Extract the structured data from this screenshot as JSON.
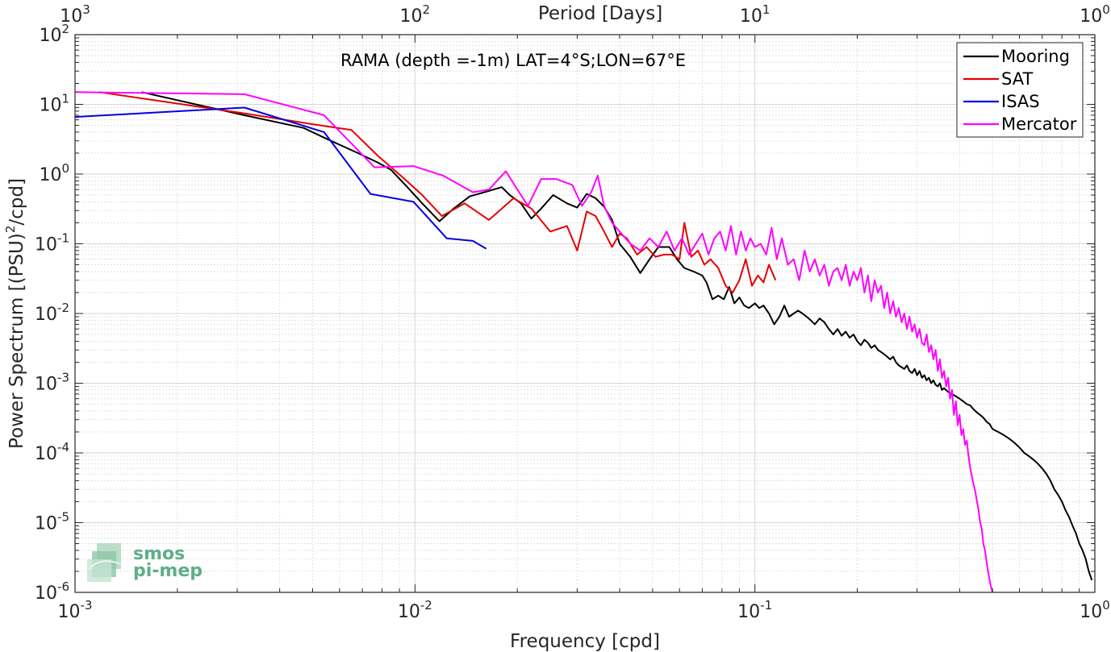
{
  "chart_data": {
    "type": "line",
    "title": "RAMA (depth =-1m) LAT=4°S;LON=67°E",
    "xlabel": "Frequency [cpd]",
    "ylabel": "Power Spectrum [(PSU)",
    "ylabel_sup": "2",
    "ylabel_tail": "/cpd]",
    "top_xlabel": "Period [Days]",
    "x_scale": "log",
    "y_scale": "log",
    "xlim": [
      0.001,
      1
    ],
    "ylim": [
      1e-06,
      100
    ],
    "grid": true,
    "minor_grid": true,
    "legend_position": "top-right",
    "x_ticks": [
      {
        "base": "10",
        "exp": "-3",
        "value": 0.001
      },
      {
        "base": "10",
        "exp": "-2",
        "value": 0.01
      },
      {
        "base": "10",
        "exp": "-1",
        "value": 0.1
      },
      {
        "base": "10",
        "exp": "0",
        "value": 1
      }
    ],
    "top_ticks": [
      {
        "base": "10",
        "exp": "3",
        "value": 0.001
      },
      {
        "base": "10",
        "exp": "2",
        "value": 0.01
      },
      {
        "base": "10",
        "exp": "1",
        "value": 0.1
      },
      {
        "base": "10",
        "exp": "0",
        "value": 1
      }
    ],
    "y_ticks": [
      {
        "base": "10",
        "exp": "2",
        "value": 100
      },
      {
        "base": "10",
        "exp": "1",
        "value": 10
      },
      {
        "base": "10",
        "exp": "0",
        "value": 1
      },
      {
        "base": "10",
        "exp": "-1",
        "value": 0.1
      },
      {
        "base": "10",
        "exp": "-2",
        "value": 0.01
      },
      {
        "base": "10",
        "exp": "-3",
        "value": 0.001
      },
      {
        "base": "10",
        "exp": "-4",
        "value": 0.0001
      },
      {
        "base": "10",
        "exp": "-5",
        "value": 1e-05
      },
      {
        "base": "10",
        "exp": "-6",
        "value": 1e-06
      }
    ],
    "series": [
      {
        "name": "Mooring",
        "color": "#000000",
        "x": [
          0.00157,
          0.00314,
          0.0047,
          0.0055,
          0.0068,
          0.0078,
          0.0085,
          0.0095,
          0.0105,
          0.0118,
          0.013,
          0.0145,
          0.016,
          0.018,
          0.019,
          0.0205,
          0.022,
          0.0235,
          0.0255,
          0.028,
          0.03,
          0.032,
          0.034,
          0.036,
          0.038,
          0.04,
          0.043,
          0.046,
          0.049,
          0.052,
          0.056,
          0.059,
          0.062,
          0.066,
          0.07,
          0.072,
          0.075,
          0.078,
          0.081,
          0.084,
          0.087,
          0.09,
          0.093,
          0.096,
          0.1,
          0.103,
          0.106,
          0.11,
          0.114,
          0.118,
          0.122,
          0.126,
          0.13,
          0.134,
          0.138,
          0.142,
          0.146,
          0.15,
          0.155,
          0.16,
          0.165,
          0.17,
          0.175,
          0.18,
          0.185,
          0.19,
          0.195,
          0.2,
          0.205,
          0.21,
          0.215,
          0.22,
          0.225,
          0.23,
          0.235,
          0.24,
          0.245,
          0.25,
          0.255,
          0.26,
          0.265,
          0.27,
          0.275,
          0.28,
          0.285,
          0.29,
          0.295,
          0.3,
          0.305,
          0.31,
          0.315,
          0.32,
          0.325,
          0.33,
          0.335,
          0.34,
          0.345,
          0.35,
          0.355,
          0.36,
          0.37,
          0.38,
          0.39,
          0.4,
          0.41,
          0.42,
          0.43,
          0.44,
          0.45,
          0.46,
          0.47,
          0.48,
          0.49,
          0.5,
          0.52,
          0.54,
          0.56,
          0.58,
          0.6,
          0.62,
          0.64,
          0.66,
          0.68,
          0.7,
          0.72,
          0.74,
          0.76,
          0.78,
          0.8,
          0.82,
          0.84,
          0.86,
          0.88,
          0.9,
          0.92,
          0.94,
          0.96,
          0.98
        ],
        "y": [
          15,
          7,
          4.6,
          3.2,
          2.0,
          1.45,
          1.15,
          0.65,
          0.38,
          0.21,
          0.32,
          0.48,
          0.55,
          0.65,
          0.5,
          0.38,
          0.23,
          0.32,
          0.5,
          0.38,
          0.33,
          0.52,
          0.45,
          0.34,
          0.22,
          0.1,
          0.065,
          0.038,
          0.06,
          0.09,
          0.09,
          0.06,
          0.045,
          0.04,
          0.035,
          0.028,
          0.016,
          0.018,
          0.016,
          0.024,
          0.014,
          0.017,
          0.013,
          0.012,
          0.014,
          0.012,
          0.013,
          0.01,
          0.007,
          0.009,
          0.013,
          0.009,
          0.01,
          0.011,
          0.01,
          0.009,
          0.008,
          0.007,
          0.0085,
          0.0075,
          0.006,
          0.005,
          0.006,
          0.0048,
          0.0055,
          0.0045,
          0.005,
          0.004,
          0.0035,
          0.0042,
          0.0038,
          0.0032,
          0.0035,
          0.003,
          0.0028,
          0.0026,
          0.0024,
          0.0022,
          0.0024,
          0.002,
          0.0018,
          0.0017,
          0.0016,
          0.0018,
          0.0015,
          0.0014,
          0.0016,
          0.0013,
          0.0015,
          0.0012,
          0.0013,
          0.0011,
          0.0012,
          0.001,
          0.0011,
          0.00095,
          0.0009,
          0.001,
          0.0008,
          0.00085,
          0.00075,
          0.0007,
          0.00065,
          0.0006,
          0.00055,
          0.0005,
          0.00048,
          0.00042,
          0.00038,
          0.00035,
          0.00032,
          0.00028,
          0.00026,
          0.00022,
          0.0002,
          0.00018,
          0.00016,
          0.00014,
          0.00012,
          0.0001,
          9e-05,
          8e-05,
          7e-05,
          6e-05,
          5e-05,
          4e-05,
          3e-05,
          2.5e-05,
          2e-05,
          1.5e-05,
          1.2e-05,
          9e-06,
          7e-06,
          5e-06,
          4e-06,
          3e-06,
          2e-06,
          1.5e-06
        ]
      },
      {
        "name": "SAT",
        "color": "#e50000",
        "x": [
          0.00118,
          0.0031,
          0.005,
          0.0065,
          0.0078,
          0.0092,
          0.0105,
          0.012,
          0.014,
          0.0165,
          0.0195,
          0.022,
          0.025,
          0.028,
          0.03,
          0.032,
          0.034,
          0.036,
          0.038,
          0.04,
          0.042,
          0.045,
          0.048,
          0.051,
          0.054,
          0.057,
          0.06,
          0.062,
          0.065,
          0.068,
          0.071,
          0.074,
          0.078,
          0.082,
          0.086,
          0.09,
          0.094,
          0.098,
          0.102,
          0.106,
          0.11,
          0.115
        ],
        "y": [
          15,
          7.5,
          5.2,
          4.3,
          1.8,
          0.9,
          0.5,
          0.25,
          0.38,
          0.22,
          0.45,
          0.32,
          0.15,
          0.18,
          0.08,
          0.29,
          0.25,
          0.15,
          0.09,
          0.14,
          0.12,
          0.07,
          0.09,
          0.065,
          0.07,
          0.07,
          0.06,
          0.2,
          0.065,
          0.08,
          0.05,
          0.06,
          0.045,
          0.025,
          0.02,
          0.03,
          0.06,
          0.025,
          0.035,
          0.028,
          0.05,
          0.03
        ]
      },
      {
        "name": "ISAS",
        "color": "#0000e5",
        "x": [
          0.001,
          0.00315,
          0.0054,
          0.0074,
          0.0099,
          0.0124,
          0.0148,
          0.0162
        ],
        "y": [
          6.6,
          9,
          4,
          0.52,
          0.4,
          0.12,
          0.11,
          0.085
        ]
      },
      {
        "name": "Mercator",
        "color": "#ff00ff",
        "x": [
          0.001,
          0.00315,
          0.0054,
          0.0076,
          0.0099,
          0.0121,
          0.0148,
          0.0165,
          0.0185,
          0.02,
          0.0215,
          0.0235,
          0.026,
          0.029,
          0.031,
          0.033,
          0.0345,
          0.036,
          0.038,
          0.04,
          0.043,
          0.046,
          0.049,
          0.052,
          0.055,
          0.058,
          0.061,
          0.064,
          0.067,
          0.07,
          0.073,
          0.076,
          0.079,
          0.082,
          0.085,
          0.088,
          0.091,
          0.094,
          0.097,
          0.1,
          0.104,
          0.108,
          0.112,
          0.116,
          0.12,
          0.125,
          0.13,
          0.135,
          0.14,
          0.145,
          0.15,
          0.155,
          0.16,
          0.165,
          0.17,
          0.175,
          0.18,
          0.185,
          0.19,
          0.195,
          0.2,
          0.205,
          0.21,
          0.215,
          0.22,
          0.225,
          0.23,
          0.235,
          0.24,
          0.245,
          0.25,
          0.255,
          0.26,
          0.265,
          0.27,
          0.275,
          0.28,
          0.285,
          0.29,
          0.295,
          0.3,
          0.305,
          0.31,
          0.315,
          0.32,
          0.325,
          0.33,
          0.335,
          0.34,
          0.345,
          0.35,
          0.355,
          0.36,
          0.365,
          0.37,
          0.375,
          0.38,
          0.385,
          0.39,
          0.395,
          0.4,
          0.405,
          0.41,
          0.415,
          0.42,
          0.425,
          0.43,
          0.435,
          0.44,
          0.445,
          0.45,
          0.455,
          0.46,
          0.465,
          0.47,
          0.475,
          0.48,
          0.485,
          0.49,
          0.495,
          0.5
        ],
        "y": [
          15,
          14,
          7,
          1.25,
          1.3,
          0.95,
          0.55,
          0.6,
          1.1,
          0.6,
          0.35,
          0.85,
          0.85,
          0.7,
          0.35,
          0.55,
          0.95,
          0.35,
          0.2,
          0.15,
          0.1,
          0.08,
          0.12,
          0.09,
          0.15,
          0.08,
          0.12,
          0.07,
          0.1,
          0.14,
          0.07,
          0.12,
          0.15,
          0.08,
          0.18,
          0.07,
          0.15,
          0.08,
          0.12,
          0.09,
          0.1,
          0.07,
          0.17,
          0.06,
          0.12,
          0.05,
          0.06,
          0.03,
          0.08,
          0.04,
          0.06,
          0.035,
          0.05,
          0.025,
          0.04,
          0.045,
          0.03,
          0.05,
          0.025,
          0.04,
          0.03,
          0.045,
          0.02,
          0.035,
          0.015,
          0.03,
          0.02,
          0.025,
          0.012,
          0.02,
          0.01,
          0.015,
          0.009,
          0.012,
          0.0075,
          0.01,
          0.006,
          0.009,
          0.0055,
          0.007,
          0.0045,
          0.006,
          0.0038,
          0.0035,
          0.005,
          0.0028,
          0.0035,
          0.0022,
          0.003,
          0.0015,
          0.0022,
          0.0012,
          0.0015,
          0.0009,
          0.0012,
          0.0006,
          0.0008,
          0.00035,
          0.00055,
          0.00025,
          0.00035,
          0.00018,
          0.00022,
          0.00013,
          0.00015,
          9e-05,
          6e-05,
          4.5e-05,
          3.5e-05,
          2.8e-05,
          2e-05,
          1.5e-05,
          1e-05,
          8e-06,
          5e-06,
          4e-06,
          2.8e-06,
          2e-06,
          1.5e-06,
          1.2e-06,
          1e-06
        ]
      }
    ]
  },
  "logo": {
    "line1": "smos",
    "line2": "pi-mep",
    "color": "#5fae87"
  }
}
